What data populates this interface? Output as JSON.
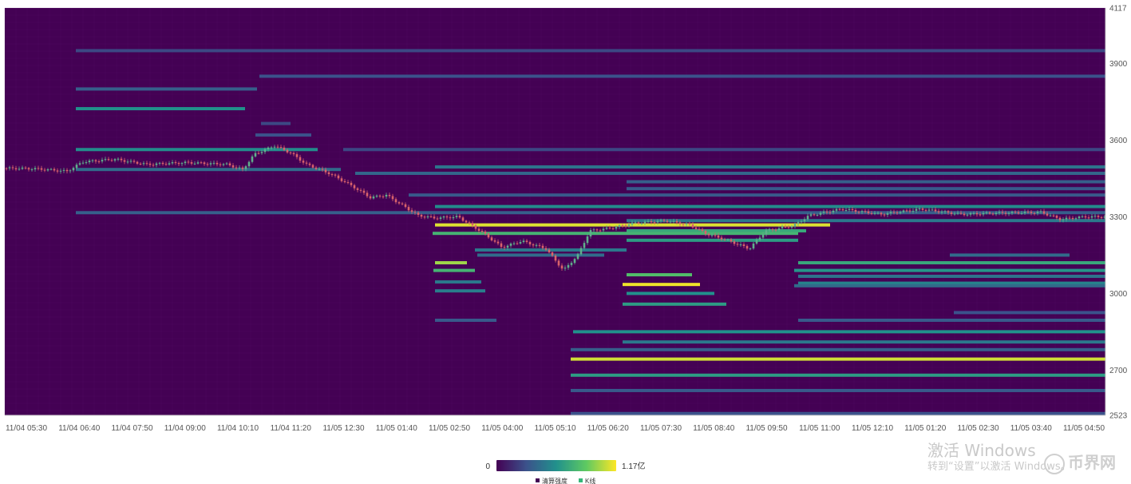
{
  "chart_data": {
    "type": "heatmap",
    "x_ticks": [
      "11/04 05:30",
      "11/04 06:40",
      "11/04 07:50",
      "11/04 09:00",
      "11/04 10:10",
      "11/04 11:20",
      "11/05 12:30",
      "11/05 01:40",
      "11/05 02:50",
      "11/05 04:00",
      "11/05 05:10",
      "11/05 06:20",
      "11/05 07:30",
      "11/05 08:40",
      "11/05 09:50",
      "11/05 11:00",
      "11/05 12:10",
      "11/05 01:20",
      "11/05 02:30",
      "11/05 03:40",
      "11/05 04:50"
    ],
    "y_ticks": [
      "4117",
      "3900",
      "3600",
      "3300",
      "3000",
      "2700",
      "2523"
    ],
    "ylim": [
      2523,
      4117
    ],
    "grid": true,
    "legend": {
      "min_label": "0",
      "max_label": "1.17亿",
      "max_value": 117000000,
      "items": [
        {
          "label": "清算强度",
          "color": "#440154"
        },
        {
          "label": "K线",
          "color": "#35b779"
        }
      ]
    },
    "colors": {
      "background": "#440154",
      "scale": [
        "#440154",
        "#3b528b",
        "#21918c",
        "#5ec962",
        "#fde725"
      ],
      "candle_up": "#5fb08c",
      "candle_down": "#d9626b"
    },
    "price_path": [
      {
        "t": 0,
        "p": 3490
      },
      {
        "t": 40,
        "p": 3488
      },
      {
        "t": 80,
        "p": 3478
      },
      {
        "t": 100,
        "p": 3515
      },
      {
        "t": 140,
        "p": 3525
      },
      {
        "t": 180,
        "p": 3505
      },
      {
        "t": 230,
        "p": 3512
      },
      {
        "t": 280,
        "p": 3505
      },
      {
        "t": 300,
        "p": 3485
      },
      {
        "t": 315,
        "p": 3545
      },
      {
        "t": 340,
        "p": 3578
      },
      {
        "t": 360,
        "p": 3550
      },
      {
        "t": 380,
        "p": 3505
      },
      {
        "t": 410,
        "p": 3468
      },
      {
        "t": 440,
        "p": 3415
      },
      {
        "t": 460,
        "p": 3375
      },
      {
        "t": 480,
        "p": 3385
      },
      {
        "t": 500,
        "p": 3345
      },
      {
        "t": 520,
        "p": 3305
      },
      {
        "t": 540,
        "p": 3295
      },
      {
        "t": 570,
        "p": 3300
      },
      {
        "t": 600,
        "p": 3240
      },
      {
        "t": 625,
        "p": 3180
      },
      {
        "t": 650,
        "p": 3205
      },
      {
        "t": 680,
        "p": 3175
      },
      {
        "t": 702,
        "p": 3090
      },
      {
        "t": 720,
        "p": 3150
      },
      {
        "t": 735,
        "p": 3245
      },
      {
        "t": 760,
        "p": 3255
      },
      {
        "t": 790,
        "p": 3275
      },
      {
        "t": 830,
        "p": 3285
      },
      {
        "t": 860,
        "p": 3268
      },
      {
        "t": 880,
        "p": 3235
      },
      {
        "t": 910,
        "p": 3205
      },
      {
        "t": 935,
        "p": 3175
      },
      {
        "t": 955,
        "p": 3245
      },
      {
        "t": 990,
        "p": 3265
      },
      {
        "t": 1010,
        "p": 3305
      },
      {
        "t": 1050,
        "p": 3330
      },
      {
        "t": 1100,
        "p": 3310
      },
      {
        "t": 1150,
        "p": 3330
      },
      {
        "t": 1200,
        "p": 3310
      },
      {
        "t": 1250,
        "p": 3315
      },
      {
        "t": 1300,
        "p": 3318
      },
      {
        "t": 1325,
        "p": 3290
      },
      {
        "t": 1355,
        "p": 3300
      },
      {
        "t": 1380,
        "p": 3300
      }
    ],
    "liquidation_bands": [
      {
        "price": 3950,
        "x0": 95,
        "x1": 1385,
        "v": 0.22
      },
      {
        "price": 3850,
        "x0": 325,
        "x1": 1385,
        "v": 0.25
      },
      {
        "price": 3800,
        "x0": 95,
        "x1": 322,
        "v": 0.3
      },
      {
        "price": 3723,
        "x0": 95,
        "x1": 307,
        "v": 0.5
      },
      {
        "price": 3665,
        "x0": 327,
        "x1": 364,
        "v": 0.22
      },
      {
        "price": 3620,
        "x0": 320,
        "x1": 390,
        "v": 0.25
      },
      {
        "price": 3563,
        "x0": 95,
        "x1": 398,
        "v": 0.48
      },
      {
        "price": 3563,
        "x0": 430,
        "x1": 1385,
        "v": 0.22
      },
      {
        "price": 3485,
        "x0": 95,
        "x1": 427,
        "v": 0.35
      },
      {
        "price": 3495,
        "x0": 545,
        "x1": 1385,
        "v": 0.38
      },
      {
        "price": 3470,
        "x0": 445,
        "x1": 1385,
        "v": 0.33
      },
      {
        "price": 3437,
        "x0": 785,
        "x1": 1385,
        "v": 0.3
      },
      {
        "price": 3410,
        "x0": 785,
        "x1": 1385,
        "v": 0.28
      },
      {
        "price": 3385,
        "x0": 512,
        "x1": 1385,
        "v": 0.28
      },
      {
        "price": 3340,
        "x0": 545,
        "x1": 1385,
        "v": 0.48
      },
      {
        "price": 3316,
        "x0": 95,
        "x1": 1385,
        "v": 0.3
      },
      {
        "price": 3285,
        "x0": 785,
        "x1": 1385,
        "v": 0.4
      },
      {
        "price": 3268,
        "x0": 545,
        "x1": 1040,
        "v": 0.95
      },
      {
        "price": 3245,
        "x0": 785,
        "x1": 1010,
        "v": 0.6
      },
      {
        "price": 3235,
        "x0": 542,
        "x1": 1000,
        "v": 0.65
      },
      {
        "price": 3208,
        "x0": 785,
        "x1": 1000,
        "v": 0.55
      },
      {
        "price": 3170,
        "x0": 595,
        "x1": 785,
        "v": 0.4
      },
      {
        "price": 3150,
        "x0": 598,
        "x1": 757,
        "v": 0.35
      },
      {
        "price": 3150,
        "x0": 1190,
        "x1": 1340,
        "v": 0.35
      },
      {
        "price": 3120,
        "x0": 545,
        "x1": 585,
        "v": 0.85
      },
      {
        "price": 3120,
        "x0": 1000,
        "x1": 1385,
        "v": 0.6
      },
      {
        "price": 3090,
        "x0": 543,
        "x1": 595,
        "v": 0.65
      },
      {
        "price": 3090,
        "x0": 995,
        "x1": 1385,
        "v": 0.52
      },
      {
        "price": 3073,
        "x0": 785,
        "x1": 867,
        "v": 0.7
      },
      {
        "price": 3067,
        "x0": 1000,
        "x1": 1385,
        "v": 0.38
      },
      {
        "price": 3045,
        "x0": 545,
        "x1": 603,
        "v": 0.4
      },
      {
        "price": 3040,
        "x0": 1000,
        "x1": 1385,
        "v": 0.45
      },
      {
        "price": 3035,
        "x0": 780,
        "x1": 877,
        "v": 0.98
      },
      {
        "price": 3010,
        "x0": 545,
        "x1": 608,
        "v": 0.42
      },
      {
        "price": 3030,
        "x0": 995,
        "x1": 1385,
        "v": 0.35
      },
      {
        "price": 3000,
        "x0": 785,
        "x1": 895,
        "v": 0.5
      },
      {
        "price": 2958,
        "x0": 780,
        "x1": 910,
        "v": 0.55
      },
      {
        "price": 2925,
        "x0": 1195,
        "x1": 1385,
        "v": 0.25
      },
      {
        "price": 2895,
        "x0": 545,
        "x1": 622,
        "v": 0.28
      },
      {
        "price": 2895,
        "x0": 1000,
        "x1": 1385,
        "v": 0.28
      },
      {
        "price": 2850,
        "x0": 718,
        "x1": 1385,
        "v": 0.5
      },
      {
        "price": 2810,
        "x0": 780,
        "x1": 1385,
        "v": 0.4
      },
      {
        "price": 2780,
        "x0": 715,
        "x1": 1385,
        "v": 0.3
      },
      {
        "price": 2743,
        "x0": 715,
        "x1": 1385,
        "v": 0.93
      },
      {
        "price": 2680,
        "x0": 715,
        "x1": 1385,
        "v": 0.55
      },
      {
        "price": 2620,
        "x0": 715,
        "x1": 1385,
        "v": 0.28
      },
      {
        "price": 2530,
        "x0": 715,
        "x1": 1385,
        "v": 0.25
      }
    ]
  },
  "watermark": {
    "title": "激活 Windows",
    "subtitle": "转到“设置”以激活 Windows。",
    "logo_text": "币界网"
  }
}
